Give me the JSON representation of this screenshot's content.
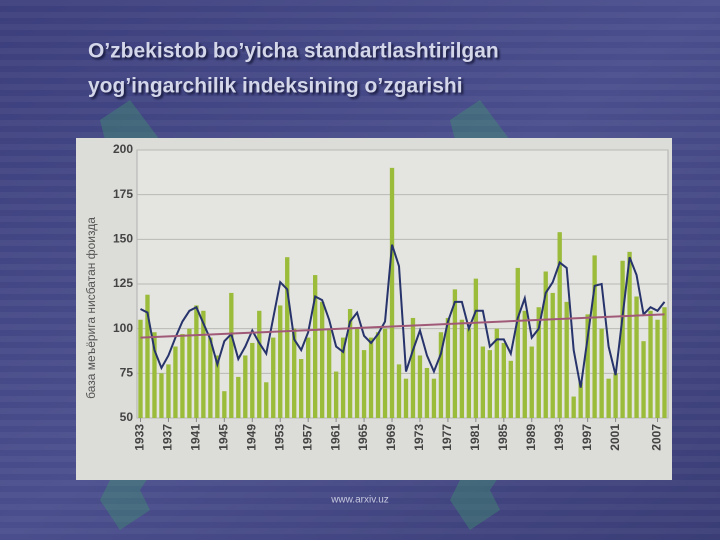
{
  "title_lines": [
    "O’zbekistob bo’yicha standartlashtirilgan",
    "yog’ingarchilik indeksining o’zgarishi"
  ],
  "footer": "www.arxiv.uz",
  "chart_data": {
    "type": "bar",
    "y_axis_label": "база меъёрига нисбатан фоизда",
    "x": [
      1933,
      1934,
      1935,
      1936,
      1937,
      1938,
      1939,
      1940,
      1941,
      1942,
      1943,
      1944,
      1945,
      1946,
      1947,
      1948,
      1949,
      1950,
      1951,
      1952,
      1953,
      1954,
      1955,
      1956,
      1957,
      1958,
      1959,
      1960,
      1961,
      1962,
      1963,
      1964,
      1965,
      1966,
      1967,
      1968,
      1969,
      1970,
      1971,
      1972,
      1973,
      1974,
      1975,
      1976,
      1977,
      1978,
      1979,
      1980,
      1981,
      1982,
      1983,
      1984,
      1985,
      1986,
      1987,
      1988,
      1989,
      1990,
      1991,
      1992,
      1993,
      1994,
      1995,
      1996,
      1997,
      1998,
      1999,
      2000,
      2001,
      2002,
      2003,
      2004,
      2005,
      2006,
      2007,
      2008
    ],
    "series": [
      {
        "color": "#9bbb3a",
        "values": [
          105,
          119,
          98,
          75,
          80,
          90,
          97,
          100,
          113,
          110,
          95,
          85,
          65,
          120,
          73,
          85,
          92,
          110,
          70,
          95,
          113,
          140,
          100,
          83,
          95,
          130,
          115,
          100,
          76,
          95,
          111,
          100,
          88,
          95,
          98,
          100,
          190,
          80,
          72,
          106,
          85,
          78,
          72,
          98,
          106,
          122,
          105,
          100,
          128,
          90,
          88,
          100,
          92,
          82,
          134,
          110,
          90,
          112,
          132,
          120,
          154,
          115,
          62,
          70,
          108,
          141,
          100,
          72,
          75,
          138,
          143,
          118,
          93,
          110,
          105,
          112
        ]
      },
      {
        "color": "#27336b",
        "type": "line",
        "values": [
          111,
          109,
          88,
          78,
          85,
          95,
          104,
          110,
          112,
          103,
          94,
          80,
          93,
          97,
          83,
          90,
          99,
          92,
          86,
          106,
          126,
          122,
          94,
          88,
          98,
          118,
          116,
          105,
          90,
          87,
          104,
          109,
          96,
          92,
          97,
          104,
          147,
          135,
          76,
          88,
          99,
          85,
          76,
          86,
          104,
          115,
          115,
          100,
          110,
          110,
          90,
          94,
          94,
          86,
          106,
          117,
          95,
          100,
          120,
          126,
          137,
          134,
          88,
          67,
          95,
          124,
          125,
          90,
          74,
          107,
          140,
          130,
          108,
          112,
          110,
          115
        ]
      }
    ],
    "trend": {
      "color": "#a05a78",
      "x": [
        1933,
        2008
      ],
      "values": [
        95,
        108
      ]
    },
    "xlim": [
      1932.5,
      2008.5
    ],
    "xticks": [
      1933,
      1937,
      1941,
      1945,
      1949,
      1953,
      1957,
      1961,
      1965,
      1969,
      1973,
      1977,
      1981,
      1985,
      1989,
      1993,
      1997,
      2001,
      2007
    ],
    "ylim": [
      50,
      200
    ],
    "yticks": [
      50,
      75,
      100,
      125,
      150,
      175,
      200
    ],
    "grid": true
  }
}
